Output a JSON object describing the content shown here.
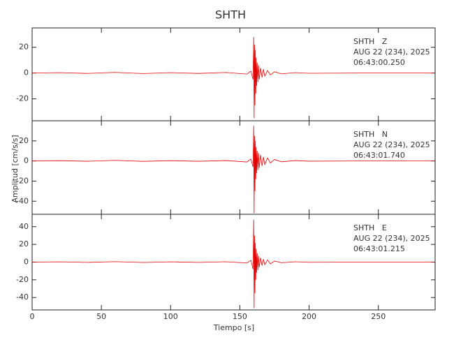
{
  "title": "SHTH",
  "xlabel": "Tiempo [s]",
  "ylabel": "Amplitud [cm/s/s]",
  "chart_data": [
    {
      "type": "line",
      "color": "#e00000",
      "annotations": [
        "SHTH   Z",
        "AUG 22 (234), 2025",
        "06:43:00.250"
      ],
      "x": [
        0,
        20,
        40,
        60,
        80,
        100,
        120,
        140,
        155,
        158,
        159.5,
        160,
        160.3,
        160.6,
        160.9,
        161.2,
        161.5,
        161.8,
        162.1,
        162.5,
        163,
        163.5,
        164,
        165,
        166,
        167,
        168,
        170,
        172,
        175,
        180,
        190,
        200,
        250,
        290
      ],
      "values": [
        0,
        0.3,
        -0.3,
        0.5,
        -0.4,
        0.3,
        -0.3,
        0.4,
        -0.8,
        1.5,
        -5,
        28,
        -35,
        22,
        -25,
        18,
        -16,
        12,
        -10,
        8,
        -7,
        6,
        -5,
        4,
        -3.5,
        3,
        -2.5,
        2,
        -1.5,
        1,
        -0.6,
        0.3,
        -0.2,
        0.1,
        0
      ],
      "xlim": [
        0,
        291
      ],
      "xticks": [
        0,
        50,
        100,
        150,
        200,
        250
      ],
      "ylim": [
        -37,
        35
      ],
      "yticks": [
        -20,
        0,
        20
      ]
    },
    {
      "type": "line",
      "color": "#e00000",
      "annotations": [
        "SHTH   N",
        "AUG 22 (234), 2025",
        "06:43:01.740"
      ],
      "x": [
        0,
        20,
        40,
        60,
        80,
        100,
        120,
        140,
        155,
        158,
        159.5,
        160,
        160.3,
        160.6,
        160.9,
        161.2,
        161.5,
        161.8,
        162.1,
        162.5,
        163,
        163.5,
        164,
        165,
        166,
        167,
        168,
        170,
        172,
        175,
        180,
        190,
        200,
        250,
        290
      ],
      "values": [
        0,
        0.3,
        -0.3,
        0.6,
        -0.4,
        0.3,
        -0.3,
        0.4,
        -1,
        2,
        -6,
        35,
        -52,
        25,
        -30,
        20,
        -18,
        14,
        -12,
        10,
        -9,
        8,
        -7,
        6,
        -5,
        4,
        -3.5,
        3,
        -2,
        1.5,
        -0.8,
        0.4,
        -0.2,
        0.1,
        0
      ],
      "xlim": [
        0,
        291
      ],
      "xticks": [
        0,
        50,
        100,
        150,
        200,
        250
      ],
      "ylim": [
        -53,
        40
      ],
      "yticks": [
        -40,
        -20,
        0,
        20
      ]
    },
    {
      "type": "line",
      "color": "#e00000",
      "annotations": [
        "SHTH   E",
        "AUG 22 (234), 2025",
        "06:43:01.215"
      ],
      "x": [
        0,
        20,
        40,
        60,
        80,
        100,
        120,
        140,
        155,
        158,
        159.5,
        160,
        160.3,
        160.6,
        160.9,
        161.2,
        161.5,
        161.8,
        162.1,
        162.5,
        163,
        163.5,
        164,
        165,
        166,
        167,
        168,
        170,
        172,
        175,
        180,
        190,
        200,
        250,
        290
      ],
      "values": [
        0,
        0.3,
        -0.3,
        0.5,
        -0.4,
        0.3,
        -0.3,
        0.4,
        -1,
        2,
        -8,
        48,
        -52,
        30,
        -35,
        22,
        -20,
        15,
        -12,
        10,
        -9,
        7,
        -6,
        5,
        -4,
        3.5,
        -3,
        2.5,
        -2,
        1.2,
        -0.7,
        0.4,
        -0.2,
        0.1,
        0
      ],
      "xlim": [
        0,
        291
      ],
      "xticks": [
        0,
        50,
        100,
        150,
        200,
        250
      ],
      "ylim": [
        -54,
        54
      ],
      "yticks": [
        -40,
        -20,
        0,
        20,
        40
      ]
    }
  ]
}
